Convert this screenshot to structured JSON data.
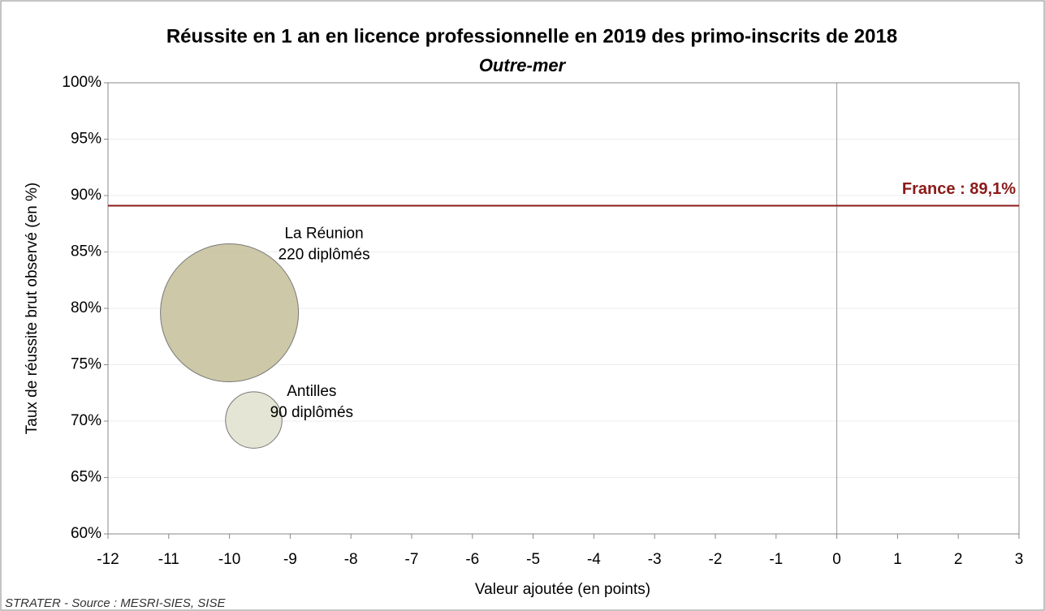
{
  "chart_data": {
    "type": "bubble",
    "title": "Réussite en 1 an en licence professionnelle en 2019 des primo-inscrits de 2018",
    "subtitle": "Outre-mer",
    "x_label": "Valeur ajoutée (en points)",
    "y_label": "Taux de réussite brut observé (en %)",
    "source": "STRATER - Source : MESRI-SIES, SISE",
    "xlim": [
      -12,
      3
    ],
    "xticks": [
      -12,
      -11,
      -10,
      -9,
      -8,
      -7,
      -6,
      -5,
      -4,
      -3,
      -2,
      -1,
      0,
      1,
      2,
      3
    ],
    "ylim": [
      60,
      100
    ],
    "yticks": [
      {
        "value": 60,
        "label": "60%"
      },
      {
        "value": 65,
        "label": "65%"
      },
      {
        "value": 70,
        "label": "70%"
      },
      {
        "value": 75,
        "label": "75%"
      },
      {
        "value": 80,
        "label": "80%"
      },
      {
        "value": 85,
        "label": "85%"
      },
      {
        "value": 90,
        "label": "90%"
      },
      {
        "value": 95,
        "label": "95%"
      },
      {
        "value": 100,
        "label": "100%"
      }
    ],
    "grid": true,
    "points": [
      {
        "name": "La Réunion",
        "x": -10,
        "y": 79.6,
        "size": 220,
        "size_label": "220 diplômés",
        "color": "#c8c29e"
      },
      {
        "name": "Antilles",
        "x": -9.6,
        "y": 70.1,
        "size": 90,
        "size_label": "90 diplômés",
        "color": "#e2e2d0"
      }
    ],
    "reference_line": {
      "value": 89.1,
      "label": "France : 89,1%",
      "color": "#8b1a1a"
    }
  }
}
